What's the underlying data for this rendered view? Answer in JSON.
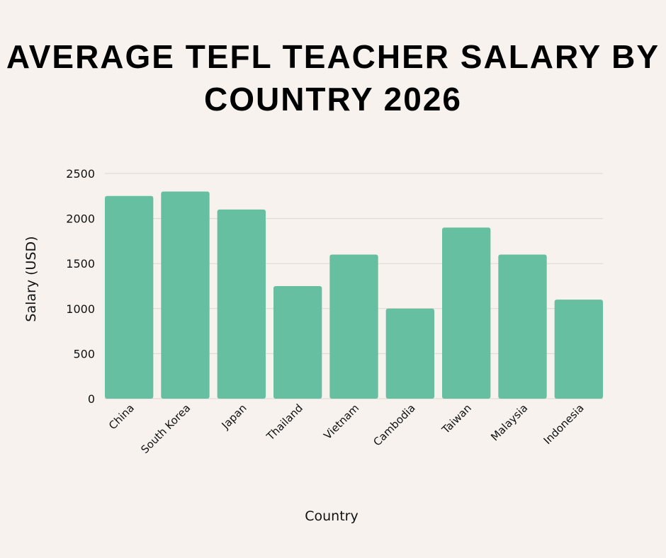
{
  "chart_data": {
    "type": "bar",
    "title": "AVERAGE TEFL TEACHER SALARY BY COUNTRY 2026",
    "xlabel": "Country",
    "ylabel": "Salary (USD)",
    "categories": [
      "China",
      "South Korea",
      "Japan",
      "Thailand",
      "Vietnam",
      "Cambodia",
      "Taiwan",
      "Malaysia",
      "Indonesia"
    ],
    "values": [
      2250,
      2300,
      2100,
      1250,
      1600,
      1000,
      1900,
      1600,
      1100
    ],
    "ylim": [
      0,
      2500
    ],
    "yticks": [
      0,
      500,
      1000,
      1500,
      2000,
      2500
    ],
    "grid": true,
    "bar_color": "#66bfa0",
    "background": "#f7f2ee"
  }
}
